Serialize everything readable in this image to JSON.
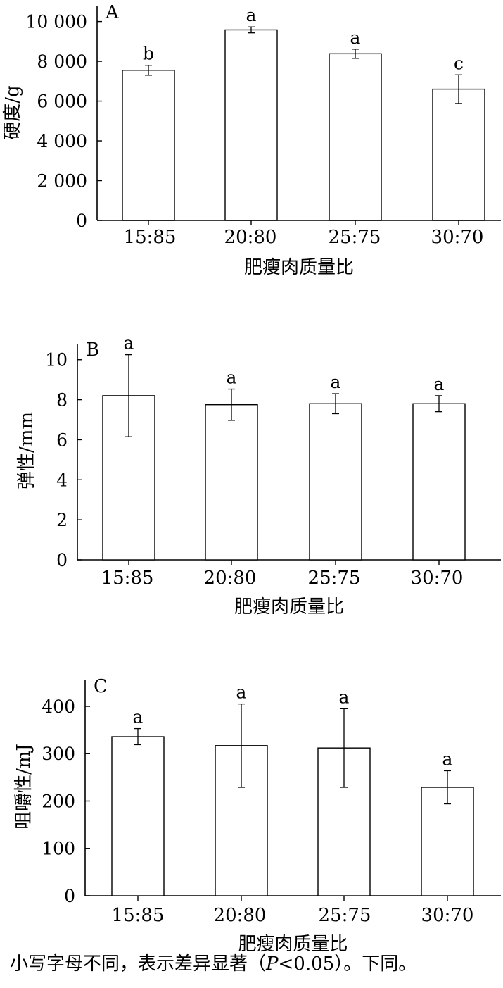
{
  "chart_data": [
    {
      "type": "bar",
      "panel": "A",
      "categories": [
        "15:85",
        "20:80",
        "25:75",
        "30:70"
      ],
      "values": [
        7550,
        9580,
        8380,
        6600
      ],
      "errors": [
        250,
        150,
        230,
        720
      ],
      "significance": [
        "b",
        "a",
        "a",
        "c"
      ],
      "xlabel": "肥瘦肉质量比",
      "ylabel": "硬度/g",
      "ylim": [
        0,
        10800
      ],
      "yticks": [
        0,
        2000,
        4000,
        6000,
        8000,
        10000
      ],
      "ytick_labels": [
        "0",
        "2 000",
        "4 000",
        "6 000",
        "8 000",
        "10 000"
      ],
      "grid": false,
      "bar_color": "#ffffff"
    },
    {
      "type": "bar",
      "panel": "B",
      "categories": [
        "15:85",
        "20:80",
        "25:75",
        "30:70"
      ],
      "values": [
        8.2,
        7.75,
        7.8,
        7.8
      ],
      "errors": [
        2.05,
        0.78,
        0.5,
        0.4
      ],
      "significance": [
        "a",
        "a",
        "a",
        "a"
      ],
      "xlabel": "肥瘦肉质量比",
      "ylabel": "弹性/mm",
      "ylim": [
        0,
        10.8
      ],
      "yticks": [
        0,
        2,
        4,
        6,
        8,
        10
      ],
      "ytick_labels": [
        "0",
        "2",
        "4",
        "6",
        "8",
        "10"
      ],
      "grid": false,
      "bar_color": "#ffffff"
    },
    {
      "type": "bar",
      "panel": "C",
      "categories": [
        "15:85",
        "20:80",
        "25:75",
        "30:70"
      ],
      "values": [
        336,
        317,
        312,
        229
      ],
      "errors": [
        17,
        88,
        83,
        35
      ],
      "significance": [
        "a",
        "a",
        "a",
        "a"
      ],
      "xlabel": "肥瘦肉质量比",
      "ylabel": "咀嚼性/mJ",
      "ylim": [
        0,
        455
      ],
      "yticks": [
        0,
        100,
        200,
        300,
        400
      ],
      "ytick_labels": [
        "0",
        "100",
        "200",
        "300",
        "400"
      ],
      "grid": false,
      "bar_color": "#ffffff"
    }
  ],
  "caption": {
    "before": "小写字母不同，表示差异显著（",
    "p_symbol": "P",
    "after": "<0.05）。下同。"
  }
}
